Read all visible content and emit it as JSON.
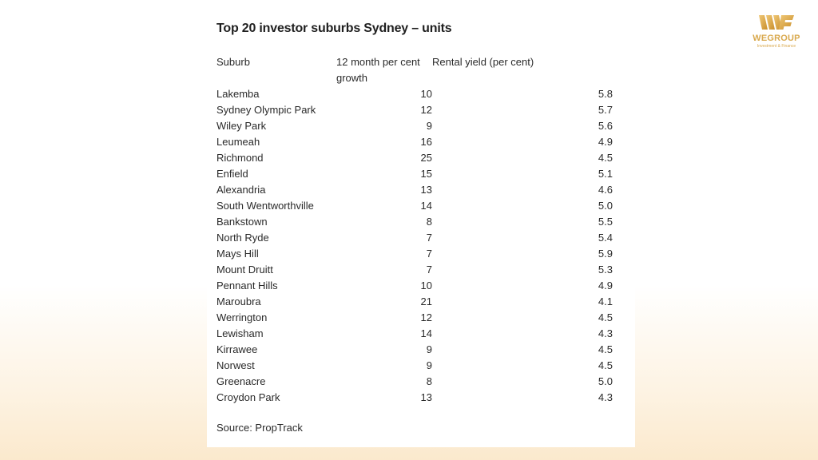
{
  "title": "Top 20 investor suburbs Sydney – units",
  "columns": {
    "suburb": "Suburb",
    "growth": "12 month per cent growth",
    "yield": "Rental yield (per cent)"
  },
  "rows": [
    {
      "suburb": "Lakemba",
      "growth": "10",
      "yield": "5.8"
    },
    {
      "suburb": "Sydney Olympic Park",
      "growth": "12",
      "yield": "5.7"
    },
    {
      "suburb": "Wiley Park",
      "growth": "9",
      "yield": "5.6"
    },
    {
      "suburb": "Leumeah",
      "growth": "16",
      "yield": "4.9"
    },
    {
      "suburb": "Richmond",
      "growth": "25",
      "yield": "4.5"
    },
    {
      "suburb": "Enfield",
      "growth": "15",
      "yield": "5.1"
    },
    {
      "suburb": "Alexandria",
      "growth": "13",
      "yield": "4.6"
    },
    {
      "suburb": "South Wentworthville",
      "growth": "14",
      "yield": "5.0"
    },
    {
      "suburb": "Bankstown",
      "growth": "8",
      "yield": "5.5"
    },
    {
      "suburb": "North Ryde",
      "growth": "7",
      "yield": "5.4"
    },
    {
      "suburb": "Mays Hill",
      "growth": "7",
      "yield": "5.9"
    },
    {
      "suburb": "Mount Druitt",
      "growth": "7",
      "yield": "5.3"
    },
    {
      "suburb": "Pennant Hills",
      "growth": "10",
      "yield": "4.9"
    },
    {
      "suburb": "Maroubra",
      "growth": "21",
      "yield": "4.1"
    },
    {
      "suburb": "Werrington",
      "growth": "12",
      "yield": "4.5"
    },
    {
      "suburb": "Lewisham",
      "growth": "14",
      "yield": "4.3"
    },
    {
      "suburb": "Kirrawee",
      "growth": "9",
      "yield": "4.5"
    },
    {
      "suburb": "Norwest",
      "growth": "9",
      "yield": "4.5"
    },
    {
      "suburb": "Greenacre",
      "growth": "8",
      "yield": "5.0"
    },
    {
      "suburb": "Croydon Park",
      "growth": "13",
      "yield": "4.3"
    }
  ],
  "source": "Source: PropTrack",
  "logo": {
    "name": "WEGROUP",
    "tagline": "Investment & Finance",
    "icon": "wegroup-logo-icon",
    "color": "#d9a94e"
  }
}
